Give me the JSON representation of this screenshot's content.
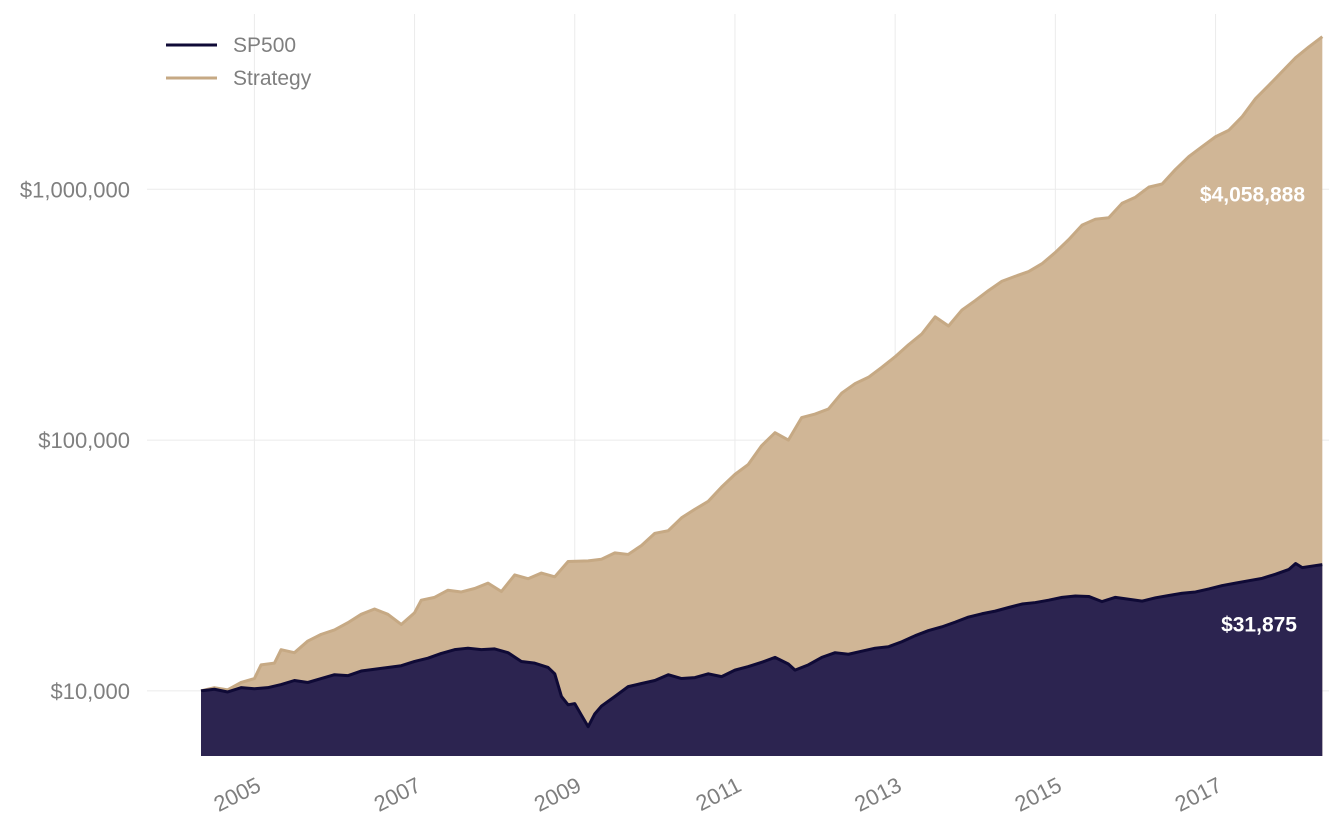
{
  "chart_data": {
    "type": "area",
    "title": "",
    "xlabel": "",
    "ylabel": "",
    "y_scale": "log",
    "grid": true,
    "legend_position": "top-left",
    "xlim": [
      "2004-05-01",
      "2018-06-01"
    ],
    "ylim": [
      5500,
      5000000
    ],
    "x_ticks": [
      2005,
      2007,
      2009,
      2011,
      2013,
      2015,
      2017
    ],
    "x_tick_labels": [
      "2005",
      "2007",
      "2009",
      "2011",
      "2013",
      "2015",
      "2017"
    ],
    "y_ticks": [
      10000,
      100000,
      1000000
    ],
    "y_tick_labels": [
      "$10,000",
      "$100,000",
      "$1,000,000"
    ],
    "series": [
      {
        "name": "Strategy",
        "line_color": "#c6a984",
        "fill_color": "#d0b696",
        "end_label": "$4,058,888",
        "points": [
          [
            "2004-05-01",
            10000
          ],
          [
            "2004-07-01",
            10300
          ],
          [
            "2004-09-01",
            10100
          ],
          [
            "2004-11-01",
            10800
          ],
          [
            "2005-01-01",
            11200
          ],
          [
            "2005-02-01",
            12700
          ],
          [
            "2005-04-01",
            12900
          ],
          [
            "2005-05-01",
            14600
          ],
          [
            "2005-07-01",
            14200
          ],
          [
            "2005-09-01",
            15800
          ],
          [
            "2005-11-01",
            16800
          ],
          [
            "2006-01-01",
            17500
          ],
          [
            "2006-03-01",
            18700
          ],
          [
            "2006-05-01",
            20200
          ],
          [
            "2006-07-01",
            21200
          ],
          [
            "2006-09-01",
            20200
          ],
          [
            "2006-11-01",
            18400
          ],
          [
            "2007-01-01",
            20500
          ],
          [
            "2007-02-01",
            23000
          ],
          [
            "2007-04-01",
            23600
          ],
          [
            "2007-06-01",
            25200
          ],
          [
            "2007-08-01",
            24800
          ],
          [
            "2007-10-01",
            25600
          ],
          [
            "2007-12-01",
            26900
          ],
          [
            "2008-02-01",
            24900
          ],
          [
            "2008-04-01",
            29000
          ],
          [
            "2008-06-01",
            28000
          ],
          [
            "2008-08-01",
            29500
          ],
          [
            "2008-10-01",
            28500
          ],
          [
            "2008-12-01",
            32800
          ],
          [
            "2009-03-01",
            33000
          ],
          [
            "2009-05-01",
            33500
          ],
          [
            "2009-07-01",
            35500
          ],
          [
            "2009-09-01",
            35000
          ],
          [
            "2009-11-01",
            38000
          ],
          [
            "2010-01-01",
            42500
          ],
          [
            "2010-03-01",
            43500
          ],
          [
            "2010-05-01",
            49000
          ],
          [
            "2010-07-01",
            53000
          ],
          [
            "2010-09-01",
            57000
          ],
          [
            "2010-11-01",
            65000
          ],
          [
            "2011-01-01",
            73000
          ],
          [
            "2011-03-01",
            80000
          ],
          [
            "2011-05-01",
            95000
          ],
          [
            "2011-07-01",
            107000
          ],
          [
            "2011-09-01",
            100000
          ],
          [
            "2011-11-01",
            123000
          ],
          [
            "2012-01-01",
            127000
          ],
          [
            "2012-03-01",
            133000
          ],
          [
            "2012-05-01",
            154000
          ],
          [
            "2012-07-01",
            168000
          ],
          [
            "2012-09-01",
            178000
          ],
          [
            "2012-11-01",
            195000
          ],
          [
            "2013-01-01",
            215000
          ],
          [
            "2013-03-01",
            240000
          ],
          [
            "2013-05-01",
            265000
          ],
          [
            "2013-07-01",
            310000
          ],
          [
            "2013-09-01",
            285000
          ],
          [
            "2013-11-01",
            330000
          ],
          [
            "2014-01-01",
            360000
          ],
          [
            "2014-03-01",
            395000
          ],
          [
            "2014-05-01",
            430000
          ],
          [
            "2014-07-01",
            450000
          ],
          [
            "2014-09-01",
            470000
          ],
          [
            "2014-11-01",
            505000
          ],
          [
            "2015-01-01",
            560000
          ],
          [
            "2015-03-01",
            630000
          ],
          [
            "2015-05-01",
            720000
          ],
          [
            "2015-07-01",
            760000
          ],
          [
            "2015-09-01",
            770000
          ],
          [
            "2015-11-01",
            880000
          ],
          [
            "2016-01-01",
            930000
          ],
          [
            "2016-03-01",
            1020000
          ],
          [
            "2016-05-01",
            1050000
          ],
          [
            "2016-07-01",
            1200000
          ],
          [
            "2016-09-01",
            1350000
          ],
          [
            "2016-11-01",
            1480000
          ],
          [
            "2017-01-01",
            1620000
          ],
          [
            "2017-03-01",
            1720000
          ],
          [
            "2017-05-01",
            1950000
          ],
          [
            "2017-07-01",
            2300000
          ],
          [
            "2017-09-01",
            2600000
          ],
          [
            "2017-11-01",
            2950000
          ],
          [
            "2018-01-01",
            3350000
          ],
          [
            "2018-03-01",
            3700000
          ],
          [
            "2018-05-01",
            4058888
          ]
        ]
      },
      {
        "name": "SP500",
        "line_color": "#0f0a36",
        "fill_color": "#2c2450",
        "end_label": "$31,875",
        "points": [
          [
            "2004-05-01",
            10000
          ],
          [
            "2004-07-01",
            10150
          ],
          [
            "2004-09-01",
            9900
          ],
          [
            "2004-11-01",
            10300
          ],
          [
            "2005-01-01",
            10200
          ],
          [
            "2005-03-01",
            10300
          ],
          [
            "2005-05-01",
            10600
          ],
          [
            "2005-07-01",
            11000
          ],
          [
            "2005-09-01",
            10800
          ],
          [
            "2005-11-01",
            11200
          ],
          [
            "2006-01-01",
            11600
          ],
          [
            "2006-03-01",
            11500
          ],
          [
            "2006-05-01",
            12000
          ],
          [
            "2006-07-01",
            12200
          ],
          [
            "2006-09-01",
            12400
          ],
          [
            "2006-11-01",
            12600
          ],
          [
            "2007-01-01",
            13100
          ],
          [
            "2007-03-01",
            13500
          ],
          [
            "2007-05-01",
            14100
          ],
          [
            "2007-07-01",
            14600
          ],
          [
            "2007-09-01",
            14800
          ],
          [
            "2007-11-01",
            14600
          ],
          [
            "2008-01-01",
            14700
          ],
          [
            "2008-03-01",
            14200
          ],
          [
            "2008-05-01",
            13100
          ],
          [
            "2008-07-01",
            12900
          ],
          [
            "2008-09-01",
            12400
          ],
          [
            "2008-10-01",
            11700
          ],
          [
            "2008-11-01",
            9500
          ],
          [
            "2008-12-01",
            8800
          ],
          [
            "2009-01-01",
            8900
          ],
          [
            "2009-02-01",
            8000
          ],
          [
            "2009-03-01",
            7200
          ],
          [
            "2009-04-01",
            8100
          ],
          [
            "2009-05-01",
            8700
          ],
          [
            "2009-07-01",
            9500
          ],
          [
            "2009-09-01",
            10400
          ],
          [
            "2009-11-01",
            10700
          ],
          [
            "2010-01-01",
            11000
          ],
          [
            "2010-03-01",
            11600
          ],
          [
            "2010-05-01",
            11200
          ],
          [
            "2010-07-01",
            11300
          ],
          [
            "2010-09-01",
            11700
          ],
          [
            "2010-11-01",
            11400
          ],
          [
            "2011-01-01",
            12100
          ],
          [
            "2011-03-01",
            12500
          ],
          [
            "2011-05-01",
            13000
          ],
          [
            "2011-07-01",
            13600
          ],
          [
            "2011-09-01",
            12800
          ],
          [
            "2011-10-01",
            12100
          ],
          [
            "2011-12-01",
            12700
          ],
          [
            "2012-02-01",
            13600
          ],
          [
            "2012-04-01",
            14200
          ],
          [
            "2012-06-01",
            14000
          ],
          [
            "2012-08-01",
            14400
          ],
          [
            "2012-10-01",
            14800
          ],
          [
            "2012-12-01",
            15000
          ],
          [
            "2013-02-01",
            15700
          ],
          [
            "2013-04-01",
            16600
          ],
          [
            "2013-06-01",
            17400
          ],
          [
            "2013-08-01",
            18000
          ],
          [
            "2013-10-01",
            18800
          ],
          [
            "2013-12-01",
            19700
          ],
          [
            "2014-02-01",
            20300
          ],
          [
            "2014-04-01",
            20800
          ],
          [
            "2014-06-01",
            21500
          ],
          [
            "2014-08-01",
            22200
          ],
          [
            "2014-10-01",
            22500
          ],
          [
            "2014-12-01",
            23000
          ],
          [
            "2015-02-01",
            23600
          ],
          [
            "2015-04-01",
            23900
          ],
          [
            "2015-06-01",
            23800
          ],
          [
            "2015-08-01",
            22700
          ],
          [
            "2015-10-01",
            23600
          ],
          [
            "2015-12-01",
            23200
          ],
          [
            "2016-02-01",
            22800
          ],
          [
            "2016-04-01",
            23500
          ],
          [
            "2016-06-01",
            24000
          ],
          [
            "2016-08-01",
            24500
          ],
          [
            "2016-10-01",
            24800
          ],
          [
            "2016-12-01",
            25500
          ],
          [
            "2017-02-01",
            26300
          ],
          [
            "2017-04-01",
            26900
          ],
          [
            "2017-06-01",
            27500
          ],
          [
            "2017-08-01",
            28100
          ],
          [
            "2017-10-01",
            29200
          ],
          [
            "2017-12-01",
            30500
          ],
          [
            "2018-01-01",
            32200
          ],
          [
            "2018-02-01",
            31000
          ],
          [
            "2018-04-01",
            31600
          ],
          [
            "2018-05-01",
            31875
          ]
        ]
      }
    ]
  }
}
